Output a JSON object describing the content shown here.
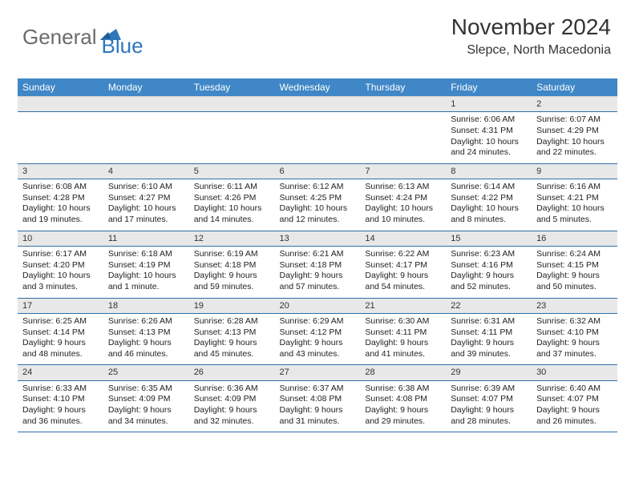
{
  "logo": {
    "part1": "General",
    "part2": "Blue",
    "fill": "#2f77bb"
  },
  "header": {
    "title": "November 2024",
    "location": "Slepce, North Macedonia"
  },
  "colors": {
    "header_bg": "#3f87c6",
    "daynum_bg": "#e8e8e8",
    "rule": "#2f6fa8"
  },
  "weekdays": [
    "Sunday",
    "Monday",
    "Tuesday",
    "Wednesday",
    "Thursday",
    "Friday",
    "Saturday"
  ],
  "weeks": [
    [
      null,
      null,
      null,
      null,
      null,
      {
        "n": "1",
        "sr": "Sunrise: 6:06 AM",
        "ss": "Sunset: 4:31 PM",
        "dl": "Daylight: 10 hours and 24 minutes."
      },
      {
        "n": "2",
        "sr": "Sunrise: 6:07 AM",
        "ss": "Sunset: 4:29 PM",
        "dl": "Daylight: 10 hours and 22 minutes."
      }
    ],
    [
      {
        "n": "3",
        "sr": "Sunrise: 6:08 AM",
        "ss": "Sunset: 4:28 PM",
        "dl": "Daylight: 10 hours and 19 minutes."
      },
      {
        "n": "4",
        "sr": "Sunrise: 6:10 AM",
        "ss": "Sunset: 4:27 PM",
        "dl": "Daylight: 10 hours and 17 minutes."
      },
      {
        "n": "5",
        "sr": "Sunrise: 6:11 AM",
        "ss": "Sunset: 4:26 PM",
        "dl": "Daylight: 10 hours and 14 minutes."
      },
      {
        "n": "6",
        "sr": "Sunrise: 6:12 AM",
        "ss": "Sunset: 4:25 PM",
        "dl": "Daylight: 10 hours and 12 minutes."
      },
      {
        "n": "7",
        "sr": "Sunrise: 6:13 AM",
        "ss": "Sunset: 4:24 PM",
        "dl": "Daylight: 10 hours and 10 minutes."
      },
      {
        "n": "8",
        "sr": "Sunrise: 6:14 AM",
        "ss": "Sunset: 4:22 PM",
        "dl": "Daylight: 10 hours and 8 minutes."
      },
      {
        "n": "9",
        "sr": "Sunrise: 6:16 AM",
        "ss": "Sunset: 4:21 PM",
        "dl": "Daylight: 10 hours and 5 minutes."
      }
    ],
    [
      {
        "n": "10",
        "sr": "Sunrise: 6:17 AM",
        "ss": "Sunset: 4:20 PM",
        "dl": "Daylight: 10 hours and 3 minutes."
      },
      {
        "n": "11",
        "sr": "Sunrise: 6:18 AM",
        "ss": "Sunset: 4:19 PM",
        "dl": "Daylight: 10 hours and 1 minute."
      },
      {
        "n": "12",
        "sr": "Sunrise: 6:19 AM",
        "ss": "Sunset: 4:18 PM",
        "dl": "Daylight: 9 hours and 59 minutes."
      },
      {
        "n": "13",
        "sr": "Sunrise: 6:21 AM",
        "ss": "Sunset: 4:18 PM",
        "dl": "Daylight: 9 hours and 57 minutes."
      },
      {
        "n": "14",
        "sr": "Sunrise: 6:22 AM",
        "ss": "Sunset: 4:17 PM",
        "dl": "Daylight: 9 hours and 54 minutes."
      },
      {
        "n": "15",
        "sr": "Sunrise: 6:23 AM",
        "ss": "Sunset: 4:16 PM",
        "dl": "Daylight: 9 hours and 52 minutes."
      },
      {
        "n": "16",
        "sr": "Sunrise: 6:24 AM",
        "ss": "Sunset: 4:15 PM",
        "dl": "Daylight: 9 hours and 50 minutes."
      }
    ],
    [
      {
        "n": "17",
        "sr": "Sunrise: 6:25 AM",
        "ss": "Sunset: 4:14 PM",
        "dl": "Daylight: 9 hours and 48 minutes."
      },
      {
        "n": "18",
        "sr": "Sunrise: 6:26 AM",
        "ss": "Sunset: 4:13 PM",
        "dl": "Daylight: 9 hours and 46 minutes."
      },
      {
        "n": "19",
        "sr": "Sunrise: 6:28 AM",
        "ss": "Sunset: 4:13 PM",
        "dl": "Daylight: 9 hours and 45 minutes."
      },
      {
        "n": "20",
        "sr": "Sunrise: 6:29 AM",
        "ss": "Sunset: 4:12 PM",
        "dl": "Daylight: 9 hours and 43 minutes."
      },
      {
        "n": "21",
        "sr": "Sunrise: 6:30 AM",
        "ss": "Sunset: 4:11 PM",
        "dl": "Daylight: 9 hours and 41 minutes."
      },
      {
        "n": "22",
        "sr": "Sunrise: 6:31 AM",
        "ss": "Sunset: 4:11 PM",
        "dl": "Daylight: 9 hours and 39 minutes."
      },
      {
        "n": "23",
        "sr": "Sunrise: 6:32 AM",
        "ss": "Sunset: 4:10 PM",
        "dl": "Daylight: 9 hours and 37 minutes."
      }
    ],
    [
      {
        "n": "24",
        "sr": "Sunrise: 6:33 AM",
        "ss": "Sunset: 4:10 PM",
        "dl": "Daylight: 9 hours and 36 minutes."
      },
      {
        "n": "25",
        "sr": "Sunrise: 6:35 AM",
        "ss": "Sunset: 4:09 PM",
        "dl": "Daylight: 9 hours and 34 minutes."
      },
      {
        "n": "26",
        "sr": "Sunrise: 6:36 AM",
        "ss": "Sunset: 4:09 PM",
        "dl": "Daylight: 9 hours and 32 minutes."
      },
      {
        "n": "27",
        "sr": "Sunrise: 6:37 AM",
        "ss": "Sunset: 4:08 PM",
        "dl": "Daylight: 9 hours and 31 minutes."
      },
      {
        "n": "28",
        "sr": "Sunrise: 6:38 AM",
        "ss": "Sunset: 4:08 PM",
        "dl": "Daylight: 9 hours and 29 minutes."
      },
      {
        "n": "29",
        "sr": "Sunrise: 6:39 AM",
        "ss": "Sunset: 4:07 PM",
        "dl": "Daylight: 9 hours and 28 minutes."
      },
      {
        "n": "30",
        "sr": "Sunrise: 6:40 AM",
        "ss": "Sunset: 4:07 PM",
        "dl": "Daylight: 9 hours and 26 minutes."
      }
    ]
  ]
}
